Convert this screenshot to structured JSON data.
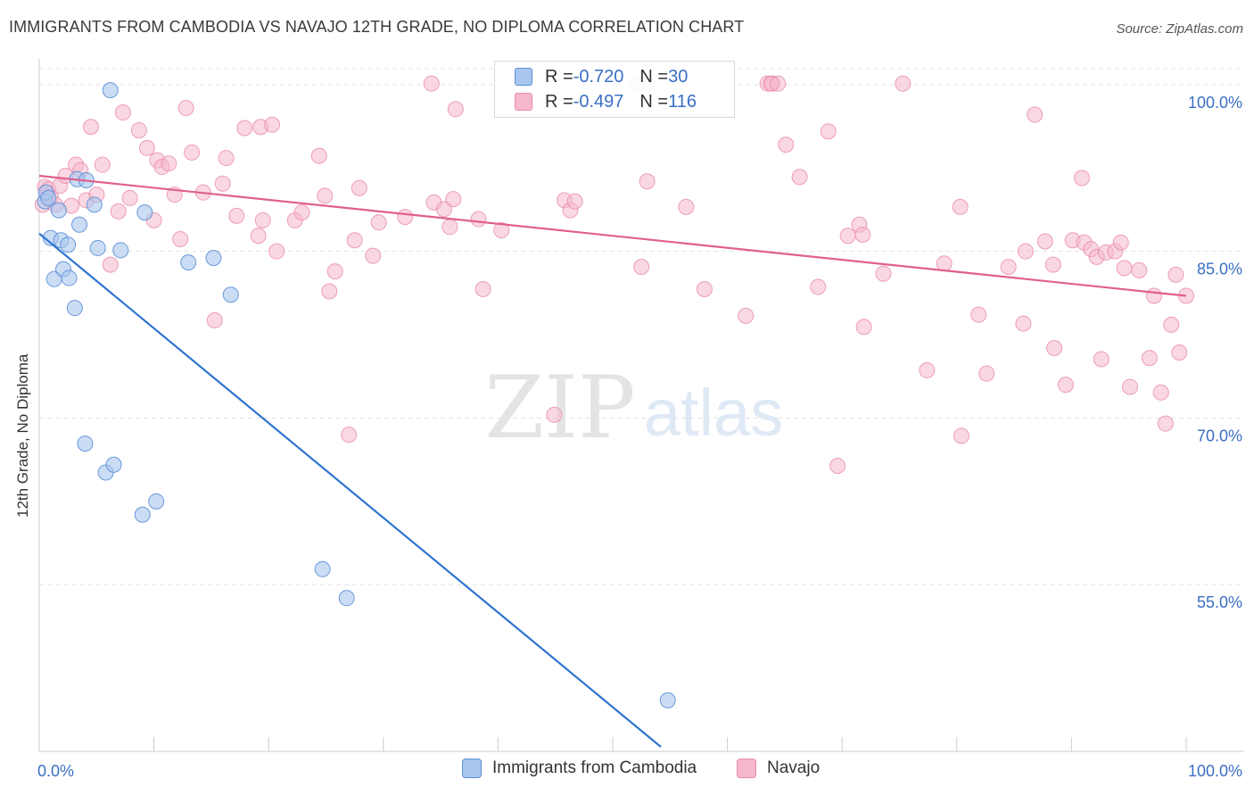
{
  "header": {
    "title": "IMMIGRANTS FROM CAMBODIA VS NAVAJO 12TH GRADE, NO DIPLOMA CORRELATION CHART",
    "source": "Source: ZipAtlas.com"
  },
  "watermark": {
    "zip": "ZIP",
    "atlas": "atlas"
  },
  "legend_top": {
    "rows": [
      {
        "r_label": "R = ",
        "r_value": "-0.720",
        "n_label": "N = ",
        "n_value": "30",
        "color": "#a8c6ee"
      },
      {
        "r_label": "R = ",
        "r_value": "-0.497",
        "n_label": "N = ",
        "n_value": "116",
        "color": "#f6b8cc"
      }
    ]
  },
  "legend_bottom": [
    {
      "label": "Immigrants from Cambodia",
      "color": "#a8c6ee"
    },
    {
      "label": "Navajo",
      "color": "#f6b8cc"
    }
  ],
  "chart_data": {
    "type": "scatter",
    "title": "IMMIGRANTS FROM CAMBODIA VS NAVAJO 12TH GRADE, NO DIPLOMA CORRELATION CHART",
    "xlabel": "",
    "ylabel": "12th Grade, No Diploma",
    "xlim": [
      0,
      100
    ],
    "ylim": [
      40,
      102
    ],
    "x_tick_labels": [
      "0.0%",
      "100.0%"
    ],
    "y_tick_labels": [
      "55.0%",
      "70.0%",
      "85.0%",
      "100.0%"
    ],
    "y_ticks": [
      55,
      70,
      85,
      100
    ],
    "grid": true,
    "legend_position": "top-center",
    "colors": {
      "cambodia_point": "#a8c6ee",
      "cambodia_edge": "#5b8fd6",
      "cambodia_line": "#2f74d0",
      "navajo_point": "#f6b8cc",
      "navajo_edge": "#e88aa8",
      "navajo_line": "#e0608c",
      "axis_text": "#3a6fc4",
      "grid": "#e2e2e2"
    },
    "series": [
      {
        "name": "Immigrants from Cambodia",
        "r": -0.72,
        "n": 30,
        "trend": {
          "x": [
            0,
            54.2
          ],
          "y": [
            86.6,
            40.4
          ]
        },
        "points": [
          [
            0.5,
            89.5
          ],
          [
            0.6,
            90.3
          ],
          [
            0.8,
            89.8
          ],
          [
            1.0,
            86.2
          ],
          [
            1.3,
            82.5
          ],
          [
            1.7,
            88.7
          ],
          [
            1.9,
            86.0
          ],
          [
            2.1,
            83.4
          ],
          [
            2.5,
            85.6
          ],
          [
            2.6,
            82.6
          ],
          [
            3.1,
            79.9
          ],
          [
            3.3,
            91.5
          ],
          [
            3.5,
            87.4
          ],
          [
            4.1,
            91.4
          ],
          [
            4.0,
            67.7
          ],
          [
            4.8,
            89.2
          ],
          [
            5.1,
            85.3
          ],
          [
            5.8,
            65.1
          ],
          [
            6.2,
            99.5
          ],
          [
            6.5,
            65.8
          ],
          [
            7.1,
            85.1
          ],
          [
            9.0,
            61.3
          ],
          [
            9.2,
            88.5
          ],
          [
            10.2,
            62.5
          ],
          [
            13.0,
            84.0
          ],
          [
            15.2,
            84.4
          ],
          [
            16.7,
            81.1
          ],
          [
            24.7,
            56.4
          ],
          [
            26.8,
            53.8
          ],
          [
            54.8,
            44.6
          ]
        ]
      },
      {
        "name": "Navajo",
        "r": -0.497,
        "n": 116,
        "trend": {
          "x": [
            0,
            100
          ],
          "y": [
            91.8,
            81.0
          ]
        },
        "points": [
          [
            0.3,
            89.2
          ],
          [
            0.5,
            90.8
          ],
          [
            0.8,
            90.6
          ],
          [
            1.0,
            89.9
          ],
          [
            1.4,
            89.2
          ],
          [
            1.8,
            90.9
          ],
          [
            2.3,
            91.8
          ],
          [
            2.8,
            89.1
          ],
          [
            3.2,
            92.8
          ],
          [
            3.6,
            92.3
          ],
          [
            4.1,
            89.6
          ],
          [
            4.5,
            96.2
          ],
          [
            5.0,
            90.1
          ],
          [
            5.5,
            92.8
          ],
          [
            6.2,
            83.8
          ],
          [
            6.9,
            88.6
          ],
          [
            7.3,
            97.5
          ],
          [
            7.9,
            89.8
          ],
          [
            8.7,
            95.9
          ],
          [
            9.4,
            94.3
          ],
          [
            10.0,
            87.8
          ],
          [
            10.3,
            93.2
          ],
          [
            10.7,
            92.6
          ],
          [
            11.3,
            92.9
          ],
          [
            11.8,
            90.1
          ],
          [
            12.3,
            86.1
          ],
          [
            12.8,
            97.9
          ],
          [
            13.3,
            93.9
          ],
          [
            14.3,
            90.3
          ],
          [
            15.3,
            78.8
          ],
          [
            16.0,
            91.1
          ],
          [
            16.3,
            93.4
          ],
          [
            17.2,
            88.2
          ],
          [
            17.9,
            96.1
          ],
          [
            19.3,
            96.2
          ],
          [
            19.1,
            86.4
          ],
          [
            19.5,
            87.8
          ],
          [
            20.3,
            96.4
          ],
          [
            20.7,
            85.0
          ],
          [
            22.3,
            87.8
          ],
          [
            22.9,
            88.5
          ],
          [
            24.4,
            93.6
          ],
          [
            24.9,
            90.0
          ],
          [
            25.3,
            81.4
          ],
          [
            25.8,
            83.2
          ],
          [
            27.0,
            68.5
          ],
          [
            27.5,
            86.0
          ],
          [
            27.9,
            90.7
          ],
          [
            29.1,
            84.6
          ],
          [
            29.6,
            87.6
          ],
          [
            31.9,
            88.1
          ],
          [
            34.2,
            100.1
          ],
          [
            34.4,
            89.4
          ],
          [
            35.3,
            88.8
          ],
          [
            35.8,
            87.2
          ],
          [
            36.1,
            89.7
          ],
          [
            36.3,
            97.8
          ],
          [
            38.3,
            87.9
          ],
          [
            38.7,
            81.6
          ],
          [
            40.3,
            86.9
          ],
          [
            44.9,
            70.3
          ],
          [
            45.8,
            89.6
          ],
          [
            46.3,
            88.7
          ],
          [
            46.7,
            89.5
          ],
          [
            52.2,
            100.1
          ],
          [
            52.5,
            83.6
          ],
          [
            53.0,
            91.3
          ],
          [
            56.4,
            89.0
          ],
          [
            58.0,
            81.6
          ],
          [
            61.6,
            79.2
          ],
          [
            63.5,
            100.1
          ],
          [
            63.9,
            100.1
          ],
          [
            63.8,
            100.1
          ],
          [
            64.4,
            100.1
          ],
          [
            65.1,
            94.6
          ],
          [
            66.3,
            91.7
          ],
          [
            67.9,
            81.8
          ],
          [
            68.8,
            95.8
          ],
          [
            69.6,
            65.7
          ],
          [
            70.5,
            86.4
          ],
          [
            71.5,
            87.4
          ],
          [
            71.8,
            86.5
          ],
          [
            71.9,
            78.2
          ],
          [
            73.6,
            83.0
          ],
          [
            75.3,
            100.1
          ],
          [
            77.4,
            74.3
          ],
          [
            78.9,
            83.9
          ],
          [
            80.3,
            89.0
          ],
          [
            80.4,
            68.4
          ],
          [
            81.9,
            79.3
          ],
          [
            82.6,
            74.0
          ],
          [
            84.5,
            83.6
          ],
          [
            85.8,
            78.5
          ],
          [
            86.0,
            85.0
          ],
          [
            86.8,
            97.3
          ],
          [
            87.7,
            85.9
          ],
          [
            88.4,
            83.8
          ],
          [
            88.5,
            76.3
          ],
          [
            89.5,
            73.0
          ],
          [
            90.1,
            86.0
          ],
          [
            90.9,
            91.6
          ],
          [
            91.1,
            85.8
          ],
          [
            91.7,
            85.2
          ],
          [
            92.2,
            84.5
          ],
          [
            92.6,
            75.3
          ],
          [
            93.0,
            84.9
          ],
          [
            93.8,
            85.0
          ],
          [
            94.3,
            85.8
          ],
          [
            94.6,
            83.5
          ],
          [
            95.1,
            72.8
          ],
          [
            95.9,
            83.3
          ],
          [
            96.8,
            75.4
          ],
          [
            97.2,
            81.0
          ],
          [
            97.8,
            72.3
          ],
          [
            98.2,
            69.5
          ],
          [
            98.7,
            78.4
          ],
          [
            99.1,
            82.9
          ],
          [
            99.4,
            75.9
          ],
          [
            100.0,
            81.0
          ]
        ]
      }
    ]
  }
}
